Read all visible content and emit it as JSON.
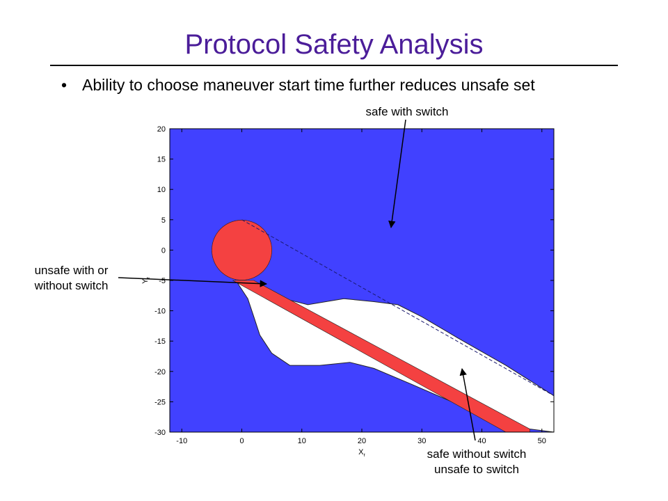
{
  "slide": {
    "title": "Protocol Safety Analysis",
    "bullet": "Ability to choose maneuver start time further reduces unsafe set",
    "bullet_symbol": "•"
  },
  "annotations": {
    "safe_with_switch": "safe with switch",
    "unsafe_line1": "unsafe with or",
    "unsafe_line2": "without switch",
    "safe_without_line1": "safe without switch",
    "safe_without_line2": "unsafe to switch"
  },
  "colors": {
    "title": "#4b1d99",
    "safe_with_switch_region": "#4141ff",
    "unsafe_region": "#f44141",
    "safe_without_switch_region": "#ffffff"
  },
  "chart_data": {
    "type": "heatmap",
    "title": "",
    "xlabel": "x_r",
    "ylabel": "y_r",
    "xlim": [
      -12,
      52
    ],
    "ylim": [
      -30,
      20
    ],
    "xticks": [
      -10,
      0,
      10,
      20,
      30,
      40,
      50
    ],
    "yticks": [
      20,
      15,
      10,
      5,
      0,
      -5,
      -10,
      -15,
      -20,
      -25,
      -30
    ],
    "grid": false,
    "regions": [
      {
        "name": "safe with switch",
        "color": "#4141ff"
      },
      {
        "name": "safe without switch unsafe to switch",
        "color": "#ffffff",
        "boundary": [
          [
            -1,
            -5
          ],
          [
            1,
            -8
          ],
          [
            2,
            -11
          ],
          [
            3,
            -14
          ],
          [
            5,
            -17
          ],
          [
            8,
            -19
          ],
          [
            13,
            -19
          ],
          [
            18,
            -18.5
          ],
          [
            22,
            -19.5
          ],
          [
            28,
            -22
          ],
          [
            35,
            -25
          ],
          [
            40,
            -27
          ],
          [
            48,
            -29.5
          ],
          [
            52,
            -30
          ],
          [
            52,
            -24
          ],
          [
            44,
            -19
          ],
          [
            36,
            -14.5
          ],
          [
            30,
            -11
          ],
          [
            26,
            -9
          ],
          [
            22,
            -8.5
          ],
          [
            17,
            -8
          ],
          [
            11,
            -9
          ],
          [
            5,
            -7.5
          ],
          [
            2,
            -6
          ],
          [
            -1,
            -5
          ]
        ]
      },
      {
        "name": "unsafe with or without switch",
        "color": "#f44141",
        "circle": {
          "cx": 0,
          "cy": 0,
          "r": 5
        },
        "band": [
          [
            -1.5,
            -5
          ],
          [
            2,
            -5
          ],
          [
            48,
            -29.5
          ],
          [
            48,
            -30
          ],
          [
            44,
            -30
          ],
          [
            -1.5,
            -5
          ]
        ]
      }
    ],
    "dashed_lines": [
      {
        "x": [
          0,
          52
        ],
        "y": [
          5,
          -24
        ]
      },
      {
        "circle": {
          "cx": 0,
          "cy": 0,
          "r": 5
        }
      }
    ]
  }
}
